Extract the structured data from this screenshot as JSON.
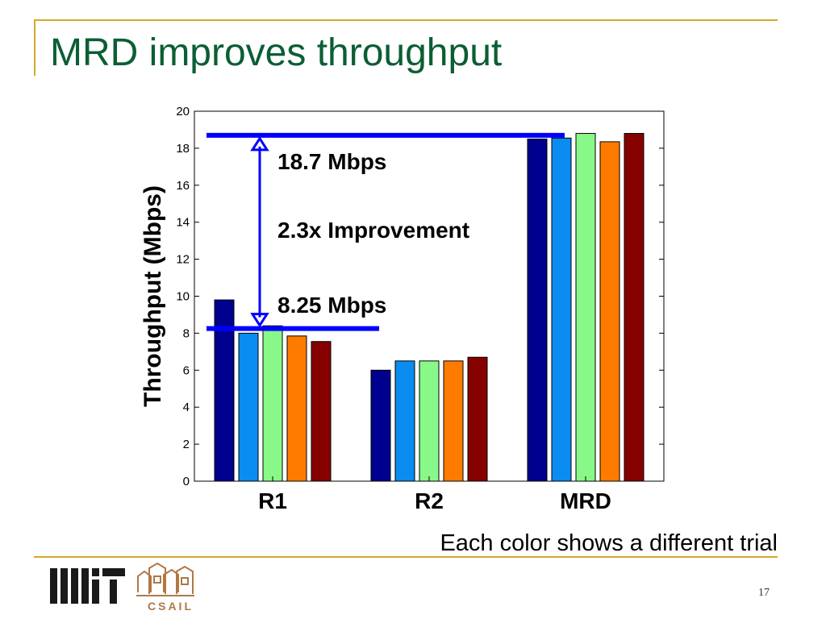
{
  "slide": {
    "title": "MRD improves throughput",
    "footnote": "Each color shows a different trial",
    "page_number": "17"
  },
  "logos": {
    "left": "MIT",
    "right": "CSAIL"
  },
  "colors": {
    "title": "#0b5e34",
    "rule": "#d4a92a",
    "annotation": "#0000ff",
    "trials": [
      "#00008f",
      "#0a8cf0",
      "#88f888",
      "#fe7b00",
      "#860000"
    ]
  },
  "chart_data": {
    "type": "bar",
    "categories": [
      "R1",
      "R2",
      "MRD"
    ],
    "series": [
      {
        "values": [
          9.8,
          6.0,
          18.5
        ]
      },
      {
        "values": [
          8.0,
          6.5,
          18.55
        ]
      },
      {
        "values": [
          8.4,
          6.5,
          18.8
        ]
      },
      {
        "values": [
          7.85,
          6.5,
          18.35
        ]
      },
      {
        "values": [
          7.55,
          6.7,
          18.8
        ]
      }
    ],
    "xlabel": "",
    "ylabel": "Throughput (Mbps)",
    "ylim": [
      0,
      20
    ],
    "yticks": [
      0,
      2,
      4,
      6,
      8,
      10,
      12,
      14,
      16,
      18,
      20
    ],
    "annotations": {
      "top_label": "18.7 Mbps",
      "middle_label": "2.3x Improvement",
      "bottom_label": "8.25 Mbps",
      "top_value": 18.7,
      "bottom_value": 8.25
    }
  }
}
